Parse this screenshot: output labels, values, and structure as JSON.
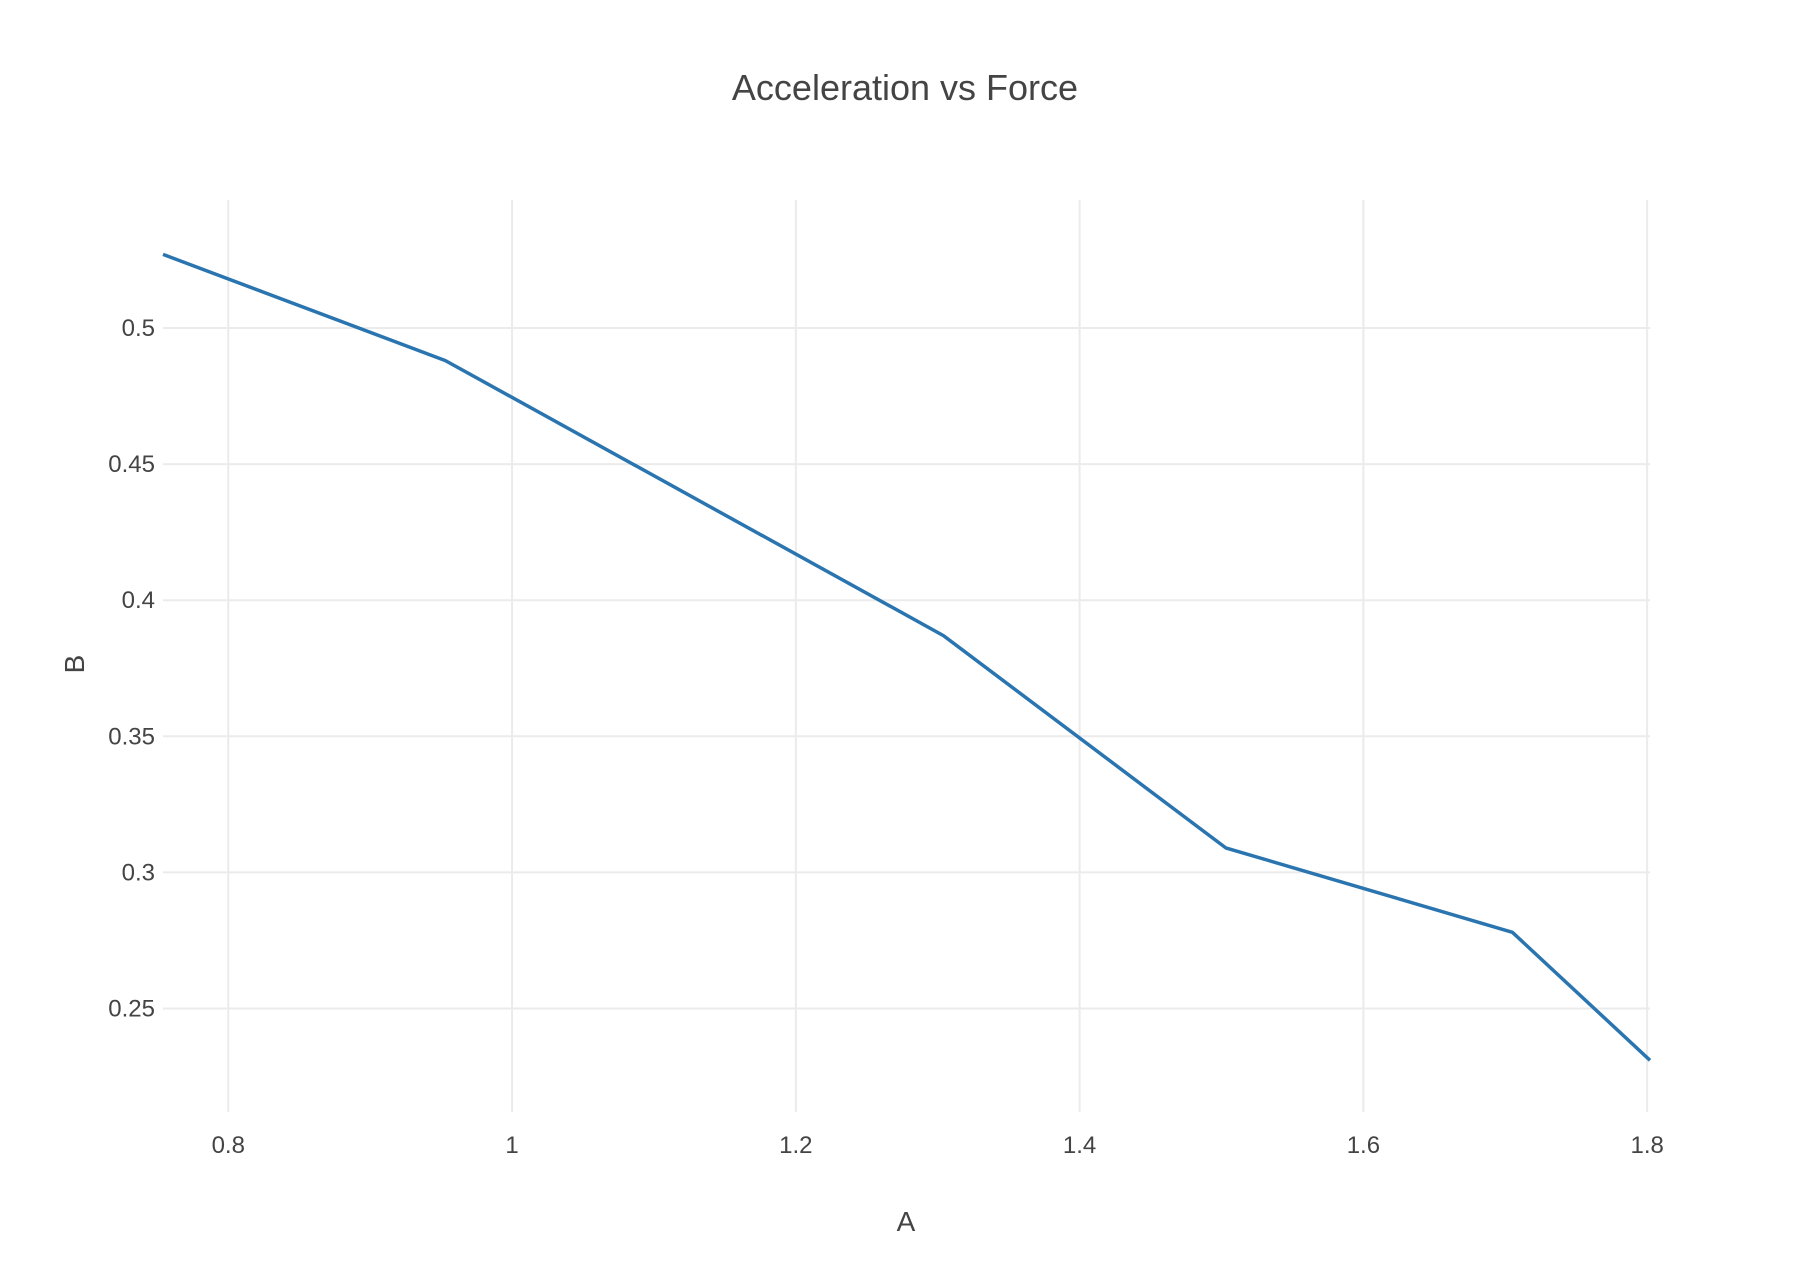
{
  "chart_data": {
    "type": "line",
    "title": "Acceleration vs Force",
    "xlabel": "A",
    "ylabel": "B",
    "xlim": [
      0.754,
      1.802
    ],
    "ylim": [
      0.212,
      0.547
    ],
    "xticks": [
      0.8,
      1,
      1.2,
      1.4,
      1.6,
      1.8
    ],
    "xtick_labels": [
      "0.8",
      "1",
      "1.2",
      "1.4",
      "1.6",
      "1.8"
    ],
    "yticks": [
      0.25,
      0.3,
      0.35,
      0.4,
      0.45,
      0.5
    ],
    "ytick_labels": [
      "0.25",
      "0.3",
      "0.35",
      "0.4",
      "0.45",
      "0.5"
    ],
    "grid": true,
    "legend": "none",
    "series": [
      {
        "color": "#2a75b0",
        "x": [
          0.754,
          0.953,
          1.304,
          1.503,
          1.705,
          1.802
        ],
        "y": [
          0.527,
          0.488,
          0.387,
          0.309,
          0.278,
          0.231
        ]
      }
    ]
  }
}
